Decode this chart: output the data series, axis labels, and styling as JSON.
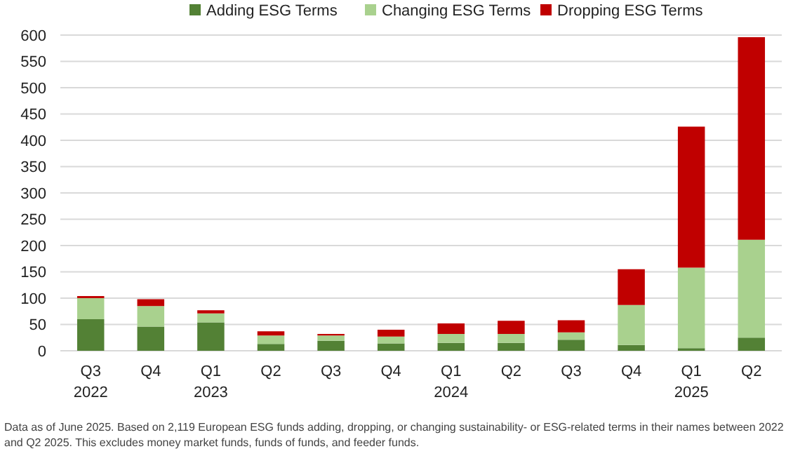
{
  "chart_data": {
    "type": "bar",
    "stacked": true,
    "categories": [
      "Q3\n2022",
      "Q4",
      "Q1\n2023",
      "Q2",
      "Q3",
      "Q4",
      "Q1\n2024",
      "Q2",
      "Q3",
      "Q4",
      "Q1\n2025",
      "Q2"
    ],
    "series": [
      {
        "name": "Adding ESG Terms",
        "color": "#538135",
        "values": [
          60,
          46,
          54,
          13,
          19,
          14,
          15,
          15,
          21,
          11,
          5,
          25
        ]
      },
      {
        "name": "Changing ESG Terms",
        "color": "#a9d18e",
        "values": [
          40,
          39,
          17,
          16,
          10,
          13,
          17,
          17,
          14,
          76,
          153,
          186
        ]
      },
      {
        "name": "Dropping ESG Terms",
        "color": "#c00000",
        "values": [
          4,
          13,
          6,
          8,
          3,
          13,
          20,
          25,
          23,
          68,
          268,
          385
        ]
      }
    ],
    "ylim": [
      0,
      600
    ],
    "yticks": [
      0,
      50,
      100,
      150,
      200,
      250,
      300,
      350,
      400,
      450,
      500,
      550,
      600
    ],
    "grid": "y",
    "legend": "top",
    "annotations": [
      "Data as of June 2025. Based on 2,119 European ESG funds adding, dropping, or changing sustainability- or ESG-related terms in their names between 2022 and Q2 2025. This excludes money market funds, funds of funds, and feeder funds."
    ]
  }
}
